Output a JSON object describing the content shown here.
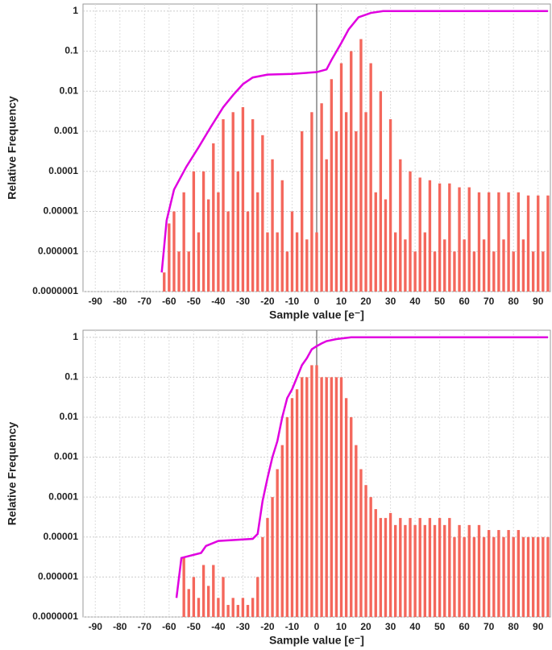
{
  "chart_data": [
    {
      "type": "bar",
      "log_y": true,
      "grid": true,
      "xlabel": "Sample value [e⁻]",
      "ylabel": "Relative Frequency",
      "xlim": [
        -95,
        95
      ],
      "ylim": [
        1e-07,
        1.5
      ],
      "xticks": [
        -90,
        -80,
        -70,
        -60,
        -50,
        -40,
        -30,
        -20,
        -10,
        0,
        10,
        20,
        30,
        40,
        50,
        60,
        70,
        80,
        90
      ],
      "yticks": [
        {
          "value": 1e-07,
          "label": "0.0000001"
        },
        1e-06,
        1e-05,
        0.0001,
        0.001,
        0.01,
        0.1,
        1
      ],
      "series": [
        {
          "type": "bar",
          "color": "#f4675c",
          "x": [
            -62,
            -60,
            -58,
            -56,
            -54,
            -52,
            -50,
            -48,
            -46,
            -44,
            -42,
            -40,
            -38,
            -36,
            -34,
            -32,
            -30,
            -28,
            -26,
            -24,
            -22,
            -20,
            -18,
            -16,
            -14,
            -12,
            -10,
            -8,
            -6,
            -4,
            -2,
            0,
            2,
            4,
            6,
            8,
            10,
            12,
            14,
            16,
            18,
            20,
            22,
            24,
            26,
            28,
            30,
            32,
            34,
            36,
            38,
            40,
            42,
            44,
            46,
            48,
            50,
            52,
            54,
            56,
            58,
            60,
            62,
            64,
            66,
            68,
            70,
            72,
            74,
            76,
            78,
            80,
            82,
            84,
            86,
            88,
            90,
            92,
            94
          ],
          "values": [
            3e-07,
            5e-06,
            1e-05,
            1e-06,
            3e-05,
            1e-06,
            0.0001,
            3e-06,
            0.0001,
            2e-05,
            0.0005,
            3e-05,
            0.002,
            1e-05,
            0.003,
            0.0001,
            0.004,
            1e-05,
            0.002,
            3e-05,
            0.0008,
            3e-06,
            0.0002,
            3e-06,
            6e-05,
            1e-06,
            1e-05,
            3e-06,
            0.001,
            2e-06,
            0.003,
            3e-06,
            0.005,
            0.0002,
            0.02,
            0.001,
            0.05,
            0.003,
            0.1,
            0.001,
            0.2,
            0.003,
            0.05,
            3e-05,
            0.01,
            2e-05,
            0.002,
            3e-06,
            0.0002,
            2e-06,
            0.0001,
            1e-06,
            7e-05,
            3e-06,
            6e-05,
            1e-06,
            5e-05,
            2e-06,
            5e-05,
            1e-06,
            4e-05,
            2e-06,
            4e-05,
            1e-06,
            3e-05,
            2e-06,
            3e-05,
            1e-06,
            3e-05,
            2e-06,
            3e-05,
            1e-06,
            3e-05,
            2e-06,
            2.5e-05,
            1e-06,
            2.5e-05,
            1e-06,
            2.5e-05
          ]
        },
        {
          "type": "line",
          "color": "#e000e0",
          "x": [
            -63,
            -61,
            -58,
            -53,
            -48,
            -43,
            -38,
            -34,
            -30,
            -26,
            -20,
            -10,
            0,
            4,
            6,
            10,
            13,
            17,
            22,
            27,
            94
          ],
          "values": [
            3e-07,
            6e-06,
            3.5e-05,
            0.00013,
            0.0004,
            0.0013,
            0.004,
            0.008,
            0.015,
            0.022,
            0.026,
            0.027,
            0.03,
            0.035,
            0.06,
            0.16,
            0.35,
            0.7,
            0.9,
            1,
            1
          ]
        }
      ]
    },
    {
      "type": "bar",
      "log_y": true,
      "grid": true,
      "xlabel": "Sample value [e⁻]",
      "ylabel": "Relative Frequency",
      "xlim": [
        -95,
        95
      ],
      "ylim": [
        1e-07,
        1.5
      ],
      "xticks": [
        -90,
        -80,
        -70,
        -60,
        -50,
        -40,
        -30,
        -20,
        -10,
        0,
        10,
        20,
        30,
        40,
        50,
        60,
        70,
        80,
        90
      ],
      "yticks": [
        {
          "value": 1e-07,
          "label": "0.0000001"
        },
        1e-06,
        1e-05,
        0.0001,
        0.001,
        0.01,
        0.1,
        1
      ],
      "series": [
        {
          "type": "bar",
          "color": "#f4675c",
          "x": [
            -54,
            -52,
            -50,
            -48,
            -46,
            -44,
            -42,
            -40,
            -38,
            -36,
            -34,
            -32,
            -30,
            -28,
            -26,
            -24,
            -22,
            -20,
            -18,
            -16,
            -14,
            -12,
            -10,
            -8,
            -6,
            -4,
            -2,
            0,
            2,
            4,
            6,
            8,
            10,
            12,
            14,
            16,
            18,
            20,
            22,
            24,
            26,
            28,
            30,
            32,
            34,
            36,
            38,
            40,
            42,
            44,
            46,
            48,
            50,
            52,
            54,
            56,
            58,
            60,
            62,
            64,
            66,
            68,
            70,
            72,
            74,
            76,
            78,
            80,
            82,
            84,
            86,
            88,
            90,
            92,
            94
          ],
          "values": [
            3e-06,
            5e-07,
            1e-06,
            3e-07,
            2e-06,
            6e-07,
            2e-06,
            3e-07,
            1e-06,
            2e-07,
            3e-07,
            2e-07,
            3e-07,
            2e-07,
            3e-07,
            1e-06,
            1e-05,
            3e-05,
            0.0001,
            0.0005,
            0.002,
            0.01,
            0.03,
            0.05,
            0.1,
            0.1,
            0.2,
            0.2,
            0.1,
            0.1,
            0.1,
            0.1,
            0.1,
            0.03,
            0.01,
            0.002,
            0.0005,
            0.0002,
            0.0001,
            5e-05,
            3e-05,
            3e-05,
            4e-05,
            2e-05,
            3e-05,
            2e-05,
            3e-05,
            2e-05,
            3e-05,
            2e-05,
            3e-05,
            2e-05,
            3e-05,
            2e-05,
            3e-05,
            1e-05,
            2e-05,
            1e-05,
            2e-05,
            1e-05,
            2e-05,
            1e-05,
            1.5e-05,
            1e-05,
            1.5e-05,
            1e-05,
            1.5e-05,
            1e-05,
            1.5e-05,
            1e-05,
            1e-05,
            1e-05,
            1e-05,
            1e-05,
            1e-05
          ]
        },
        {
          "type": "line",
          "color": "#e000e0",
          "x": [
            -57,
            -55,
            -47,
            -45,
            -40,
            -26,
            -24,
            -22,
            -20,
            -18,
            -16,
            -14,
            -12,
            -10,
            -8,
            -6,
            -4,
            -2,
            0,
            2,
            4,
            8,
            14,
            94
          ],
          "values": [
            3e-07,
            3e-06,
            4e-06,
            6e-06,
            8e-06,
            9e-06,
            1.2e-05,
            8e-05,
            0.0003,
            0.001,
            0.0025,
            0.01,
            0.03,
            0.05,
            0.1,
            0.2,
            0.3,
            0.5,
            0.6,
            0.7,
            0.8,
            0.9,
            1,
            1
          ]
        }
      ]
    }
  ]
}
